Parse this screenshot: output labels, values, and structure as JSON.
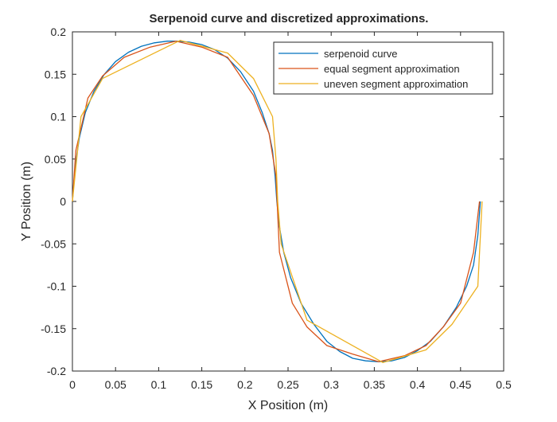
{
  "chart_data": {
    "type": "line",
    "title": "Serpenoid curve and discretized approximations.",
    "xlabel": "X Position (m)",
    "ylabel": "Y Position (m)",
    "xlim": [
      0,
      0.5
    ],
    "ylim": [
      -0.2,
      0.2
    ],
    "xticks": [
      "0",
      "0.05",
      "0.1",
      "0.15",
      "0.2",
      "0.25",
      "0.3",
      "0.35",
      "0.4",
      "0.45",
      "0.5"
    ],
    "yticks": [
      "0.2",
      "0.15",
      "0.1",
      "0.05",
      "0",
      "-0.05",
      "-0.1",
      "-0.15",
      "-0.2"
    ],
    "grid": false,
    "legend_position": "top-right",
    "series": [
      {
        "name": "serpenoid curve",
        "color": "#0072BD",
        "x": [
          0,
          0.003,
          0.008,
          0.015,
          0.025,
          0.037,
          0.05,
          0.065,
          0.08,
          0.095,
          0.11,
          0.12,
          0.135,
          0.15,
          0.165,
          0.18,
          0.195,
          0.21,
          0.22,
          0.228,
          0.232,
          0.235,
          0.237,
          0.24,
          0.245,
          0.253,
          0.265,
          0.28,
          0.295,
          0.31,
          0.325,
          0.34,
          0.355,
          0.37,
          0.385,
          0.4,
          0.415,
          0.43,
          0.445,
          0.457,
          0.465,
          0.47,
          0.473
        ],
        "y": [
          0,
          0.04,
          0.075,
          0.105,
          0.13,
          0.15,
          0.165,
          0.176,
          0.183,
          0.187,
          0.189,
          0.189,
          0.188,
          0.185,
          0.179,
          0.169,
          0.153,
          0.13,
          0.105,
          0.08,
          0.06,
          0.03,
          0,
          -0.03,
          -0.06,
          -0.09,
          -0.12,
          -0.145,
          -0.165,
          -0.177,
          -0.185,
          -0.188,
          -0.189,
          -0.188,
          -0.184,
          -0.176,
          -0.165,
          -0.148,
          -0.125,
          -0.1,
          -0.075,
          -0.04,
          0
        ]
      },
      {
        "name": "equal segment approximation",
        "color": "#D95319",
        "x": [
          0,
          0.004,
          0.018,
          0.035,
          0.06,
          0.09,
          0.12,
          0.15,
          0.18,
          0.21,
          0.228,
          0.236,
          0.24,
          0.255,
          0.272,
          0.295,
          0.325,
          0.355,
          0.385,
          0.41,
          0.43,
          0.45,
          0.465,
          0.472
        ],
        "y": [
          0,
          0.06,
          0.122,
          0.148,
          0.17,
          0.182,
          0.189,
          0.182,
          0.17,
          0.125,
          0.08,
          0.03,
          -0.06,
          -0.12,
          -0.148,
          -0.17,
          -0.18,
          -0.189,
          -0.182,
          -0.17,
          -0.148,
          -0.12,
          -0.06,
          0
        ]
      },
      {
        "name": "uneven segment approximation",
        "color": "#EDB120",
        "x": [
          0,
          0.01,
          0.035,
          0.125,
          0.18,
          0.21,
          0.232,
          0.236,
          0.238,
          0.242,
          0.272,
          0.36,
          0.41,
          0.44,
          0.47,
          0.475
        ],
        "y": [
          0,
          0.1,
          0.145,
          0.19,
          0.175,
          0.145,
          0.1,
          0.05,
          0,
          -0.05,
          -0.14,
          -0.19,
          -0.175,
          -0.145,
          -0.1,
          0
        ]
      }
    ]
  }
}
